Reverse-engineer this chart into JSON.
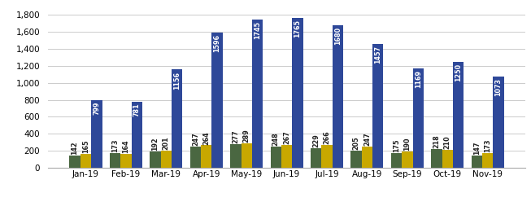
{
  "months": [
    "Jan-19",
    "Feb-19",
    "Mar-19",
    "Apr-19",
    "May-19",
    "Jun-19",
    "Jul-19",
    "Aug-19",
    "Sep-19",
    "Oct-19",
    "Nov-19"
  ],
  "alexandria": [
    142,
    173,
    192,
    247,
    277,
    248,
    229,
    205,
    175,
    218,
    147
  ],
  "arlington": [
    165,
    164,
    201,
    264,
    289,
    267,
    266,
    247,
    190,
    210,
    173
  ],
  "fairfax": [
    799,
    781,
    1156,
    1596,
    1745,
    1765,
    1680,
    1457,
    1169,
    1250,
    1073
  ],
  "color_alex": "#4a6741",
  "color_arl": "#c8a800",
  "color_fair": "#2e4899",
  "ylim": [
    0,
    1900
  ],
  "yticks": [
    0,
    200,
    400,
    600,
    800,
    1000,
    1200,
    1400,
    1600,
    1800
  ],
  "bar_width": 0.27,
  "label_fontsize": 5.8,
  "tick_fontsize": 7.5,
  "legend_fontsize": 7.5,
  "figsize": [
    6.53,
    2.64
  ],
  "dpi": 100
}
